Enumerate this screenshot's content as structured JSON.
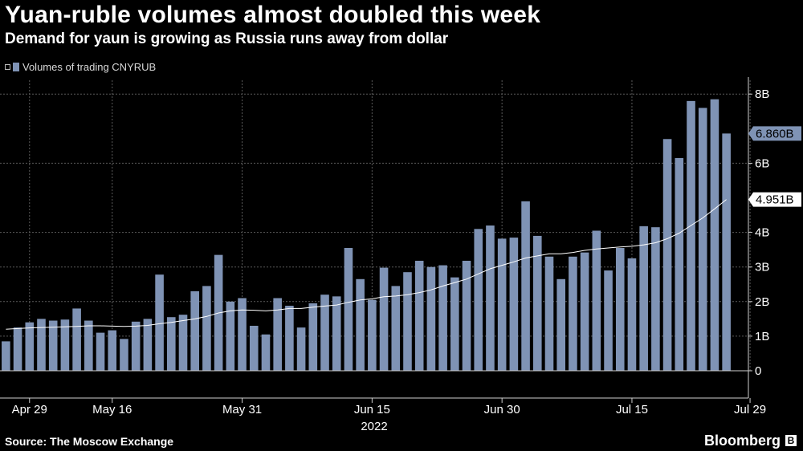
{
  "header": {
    "title": "Yuan-ruble volumes almost doubled this week",
    "subtitle": "Demand for yaun is growing as Russia runs away from dollar"
  },
  "legend": {
    "label": "Volumes of trading CNYRUB"
  },
  "footer": {
    "source": "Source: The Moscow Exchange",
    "brand": "Bloomberg",
    "brand_mark": "B"
  },
  "colors": {
    "bar": "#7f93b5",
    "line": "#ffffff",
    "grid": "#5a5a5a",
    "background": "#000000"
  },
  "chart_data": {
    "type": "bar",
    "unit": "B",
    "ylim": [
      0,
      8.4
    ],
    "yticks": [
      {
        "v": 0,
        "label": "0"
      },
      {
        "v": 1,
        "label": "1B"
      },
      {
        "v": 2,
        "label": "2B"
      },
      {
        "v": 3,
        "label": "3B"
      },
      {
        "v": 4,
        "label": "4B"
      },
      {
        "v": 6,
        "label": "6B"
      },
      {
        "v": 8,
        "label": "8B"
      }
    ],
    "xticks": [
      {
        "idx": 2,
        "label": "Apr 29"
      },
      {
        "idx": 9,
        "label": "May 16"
      },
      {
        "idx": 20,
        "label": "May 31"
      },
      {
        "idx": 31,
        "label": "Jun 15"
      },
      {
        "idx": 42,
        "label": "Jun 30"
      },
      {
        "idx": 53,
        "label": "Jul 15"
      },
      {
        "idx": 63,
        "label": "Jul 29"
      }
    ],
    "year_label": "2022",
    "series": [
      {
        "name": "Volumes of trading CNYRUB",
        "values": [
          0.85,
          1.25,
          1.4,
          1.5,
          1.45,
          1.48,
          1.8,
          1.45,
          1.1,
          1.17,
          0.92,
          1.42,
          1.5,
          2.78,
          1.55,
          1.62,
          2.3,
          2.45,
          3.35,
          2.0,
          2.1,
          1.3,
          1.05,
          2.1,
          1.88,
          1.25,
          1.95,
          2.2,
          2.15,
          3.55,
          2.65,
          2.05,
          2.98,
          2.45,
          2.85,
          3.18,
          3.0,
          3.05,
          2.7,
          3.18,
          4.1,
          4.2,
          3.82,
          3.85,
          4.9,
          3.9,
          3.3,
          2.65,
          3.3,
          3.42,
          4.05,
          2.9,
          3.55,
          3.25,
          4.18,
          4.15,
          6.7,
          6.15,
          7.8,
          7.6,
          7.85,
          6.86
        ]
      },
      {
        "name": "moving average",
        "values": [
          1.2,
          1.22,
          1.24,
          1.25,
          1.26,
          1.27,
          1.28,
          1.3,
          1.3,
          1.29,
          1.28,
          1.29,
          1.31,
          1.36,
          1.4,
          1.45,
          1.5,
          1.57,
          1.67,
          1.73,
          1.76,
          1.75,
          1.73,
          1.76,
          1.8,
          1.8,
          1.84,
          1.87,
          1.9,
          1.98,
          2.05,
          2.08,
          2.14,
          2.16,
          2.2,
          2.26,
          2.34,
          2.45,
          2.55,
          2.65,
          2.8,
          2.95,
          3.05,
          3.15,
          3.26,
          3.32,
          3.38,
          3.38,
          3.42,
          3.48,
          3.52,
          3.55,
          3.58,
          3.6,
          3.64,
          3.7,
          3.82,
          3.98,
          4.2,
          4.42,
          4.68,
          4.951
        ]
      }
    ],
    "last_value_label": "6.860B",
    "avg_value_label": "4.951B"
  }
}
